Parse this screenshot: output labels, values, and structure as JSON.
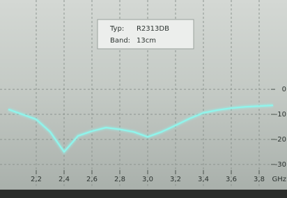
{
  "chart_data": {
    "type": "line",
    "annotations": [
      {
        "label": "Typ:",
        "text": "R2313DB"
      },
      {
        "label": "Band:",
        "text": "13cm"
      }
    ],
    "x_label": "GHz",
    "x": [
      2.0,
      2.1,
      2.2,
      2.3,
      2.4,
      2.5,
      2.6,
      2.7,
      2.8,
      2.9,
      3.0,
      3.1,
      3.2,
      3.3,
      3.4,
      3.5,
      3.6,
      3.7,
      3.8,
      3.9
    ],
    "series": [
      {
        "color": "#8ff5ec",
        "values": [
          -8,
          -10,
          -12,
          -17,
          -25,
          -18.6,
          -16.7,
          -15.3,
          -16,
          -17,
          -19,
          -17,
          -14.4,
          -11.7,
          -9.4,
          -8.3,
          -7.5,
          -7,
          -6.7,
          -6.4
        ]
      }
    ],
    "xlim": [
      1.98,
      3.96
    ],
    "xticks": [
      {
        "value": 2.2,
        "label": "2,2"
      },
      {
        "value": 2.4,
        "label": "2,4"
      },
      {
        "value": 2.6,
        "label": "2,6"
      },
      {
        "value": 2.8,
        "label": "2,8"
      },
      {
        "value": 3.0,
        "label": "3,0"
      },
      {
        "value": 3.2,
        "label": "3,2"
      },
      {
        "value": 3.4,
        "label": "3,4"
      },
      {
        "value": 3.6,
        "label": "3,6"
      },
      {
        "value": 3.8,
        "label": "3,8"
      }
    ],
    "ylim": [
      -37,
      34
    ],
    "yticks": [
      0,
      -10,
      -20,
      -30
    ],
    "grid": true
  }
}
